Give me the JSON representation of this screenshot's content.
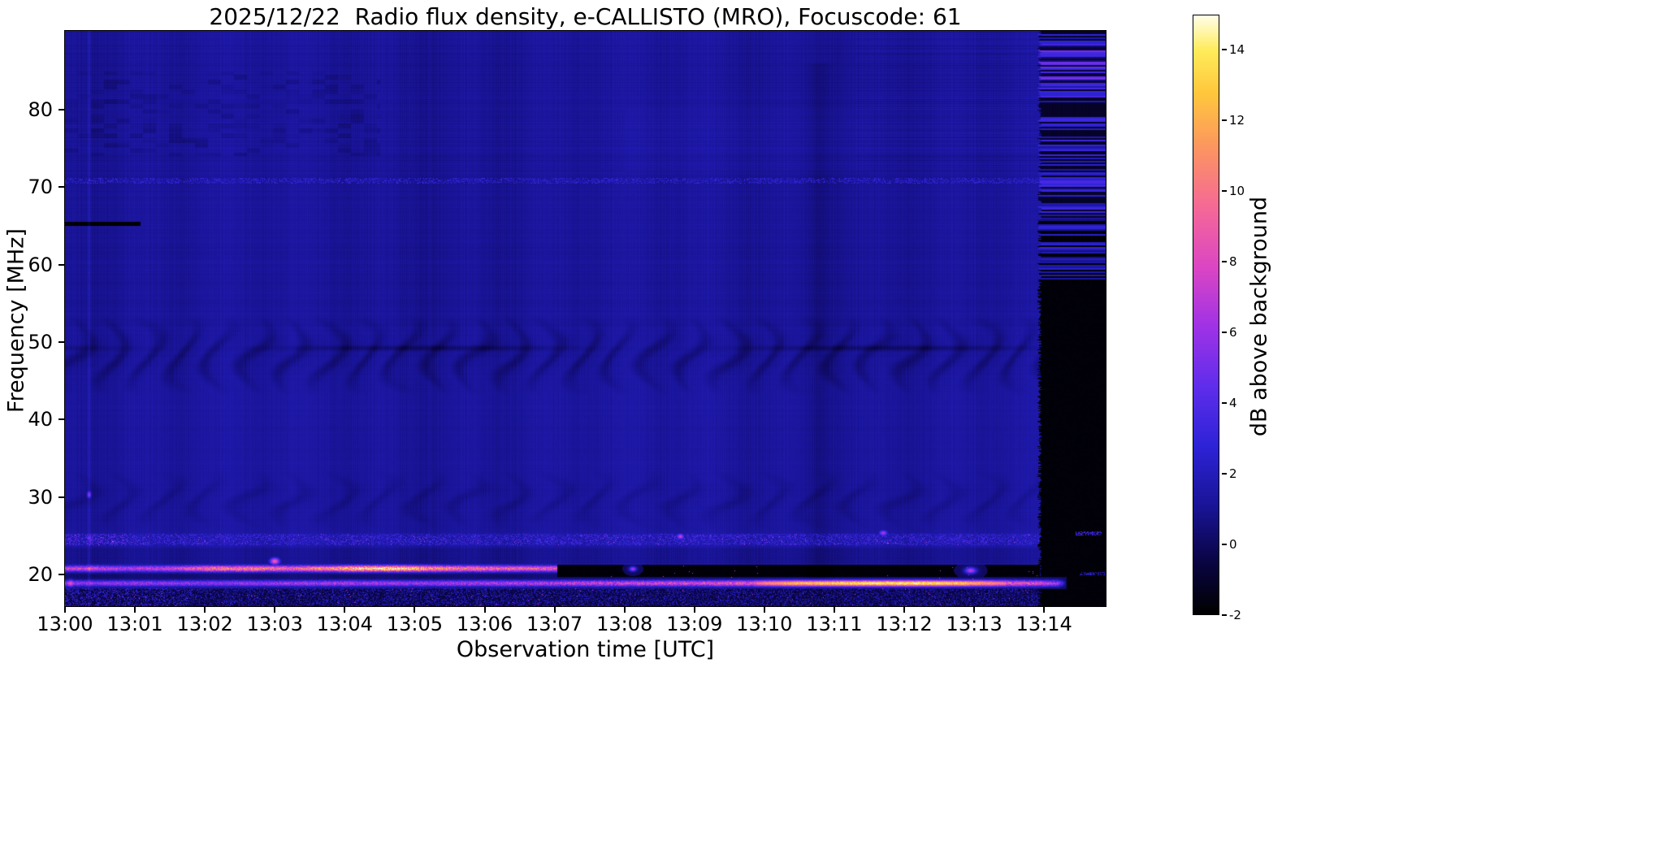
{
  "title": "2025/12/22  Radio flux density, e-CALLISTO (MRO), Focuscode: 61",
  "chart_data": {
    "type": "heatmap",
    "title": "2025/12/22  Radio flux density, e-CALLISTO (MRO), Focuscode: 61",
    "xlabel": "Observation time [UTC]",
    "ylabel": "Frequency [MHz]",
    "colorbar_label": "dB above background",
    "x_ticks": [
      "13:00",
      "13:01",
      "13:02",
      "13:03",
      "13:04",
      "13:05",
      "13:06",
      "13:07",
      "13:08",
      "13:09",
      "13:10",
      "13:11",
      "13:12",
      "13:13",
      "13:14"
    ],
    "x_range_minutes": [
      0,
      14.88
    ],
    "y_ticks": [
      80,
      70,
      60,
      50,
      40,
      30,
      20
    ],
    "y_range_mhz": [
      15.9,
      90.2
    ],
    "colorbar_ticks": [
      14,
      12,
      10,
      8,
      6,
      4,
      2,
      0,
      -2
    ],
    "colorbar_range": [
      -2,
      15
    ],
    "grid": false,
    "render": {
      "vmin": -2,
      "vmax": 15,
      "background_db": 1.25,
      "colormap_stops": [
        [
          0.0,
          0,
          0,
          0
        ],
        [
          0.09,
          10,
          5,
          70
        ],
        [
          0.18,
          25,
          20,
          150
        ],
        [
          0.28,
          45,
          35,
          215
        ],
        [
          0.38,
          95,
          45,
          235
        ],
        [
          0.48,
          160,
          50,
          230
        ],
        [
          0.58,
          220,
          70,
          195
        ],
        [
          0.68,
          245,
          105,
          150
        ],
        [
          0.78,
          252,
          150,
          95
        ],
        [
          0.87,
          255,
          200,
          60
        ],
        [
          0.94,
          255,
          235,
          90
        ],
        [
          1.0,
          255,
          255,
          235
        ]
      ],
      "wavy_bands": [
        {
          "f_min": 43.0,
          "f_max": 53.5,
          "amp": 0.85,
          "period_min": 0.52,
          "curve": 2.6
        },
        {
          "f_min": 25.8,
          "f_max": 33.5,
          "amp": 0.5,
          "period_min": 0.62,
          "curve": 2.2
        }
      ],
      "dark_row": {
        "f": 49.25,
        "sigma": 0.35,
        "depth": 1.0
      },
      "dead_line": {
        "f": 65.3,
        "half_mhz": 0.25,
        "t_end": 1.08
      },
      "speckle_row": {
        "f": 70.85,
        "half_mhz": 0.33
      },
      "speckle_band": {
        "f_min": 23.6,
        "f_max": 25.4
      },
      "line_a": {
        "f_center": 20.75,
        "sigma": 0.42,
        "intensity": [
          [
            0,
            7.5
          ],
          [
            0.35,
            8
          ],
          [
            0.9,
            7
          ],
          [
            1.6,
            8
          ],
          [
            2.1,
            10.5
          ],
          [
            2.7,
            11
          ],
          [
            3.2,
            9.5
          ],
          [
            3.8,
            11.5
          ],
          [
            4.15,
            13.5
          ],
          [
            4.6,
            14.2
          ],
          [
            5.0,
            13
          ],
          [
            5.4,
            11
          ],
          [
            6.0,
            10
          ],
          [
            6.5,
            9.5
          ],
          [
            7.0,
            9
          ],
          [
            7.04,
            9
          ],
          [
            7.06,
            0
          ],
          [
            15,
            0
          ]
        ]
      },
      "line_b": {
        "f_center": 18.85,
        "sigma": 0.4,
        "intensity": [
          [
            0,
            6.5
          ],
          [
            0.5,
            6
          ],
          [
            1,
            6.5
          ],
          [
            2,
            6
          ],
          [
            3,
            6.5
          ],
          [
            4,
            7
          ],
          [
            5,
            6.5
          ],
          [
            6,
            7
          ],
          [
            7,
            7.5
          ],
          [
            8,
            8
          ],
          [
            9,
            8.5
          ],
          [
            9.8,
            9.5
          ],
          [
            10.3,
            12
          ],
          [
            10.8,
            13.5
          ],
          [
            11.5,
            14
          ],
          [
            12.2,
            14.2
          ],
          [
            12.8,
            13
          ],
          [
            13.2,
            11
          ],
          [
            13.6,
            9.5
          ],
          [
            13.93,
            8.5
          ],
          [
            14.2,
            7
          ],
          [
            14.32,
            0
          ],
          [
            15,
            0
          ]
        ]
      },
      "blackout_band": {
        "t_start": 7.03,
        "t_end": 13.93,
        "f_min": 19.35,
        "f_max": 21.3
      },
      "right_blackout": {
        "t_start": 13.93,
        "f_split": 57.5
      },
      "streak": {
        "t": 0.345,
        "sigma": 0.022,
        "amp": 1.1
      },
      "dark_column": {
        "t": 10.78,
        "sigma": 0.16,
        "depth": 0.32
      },
      "blobs": [
        {
          "t": 3.0,
          "f": 21.7,
          "amp": 9,
          "st": 0.07,
          "sf": 0.45
        },
        {
          "t": 0.08,
          "f": 18.85,
          "amp": 8.5,
          "st": 0.06,
          "sf": 0.45
        },
        {
          "t": 8.12,
          "f": 20.7,
          "amp": 6.5,
          "st": 0.05,
          "sf": 0.3
        },
        {
          "t": 8.8,
          "f": 24.9,
          "amp": 7.5,
          "st": 0.05,
          "sf": 0.35
        },
        {
          "t": 11.7,
          "f": 25.35,
          "amp": 6.5,
          "st": 0.06,
          "sf": 0.35
        },
        {
          "t": 12.95,
          "f": 20.5,
          "amp": 7,
          "st": 0.08,
          "sf": 0.4
        },
        {
          "t": 0.345,
          "f": 30.3,
          "amp": 6,
          "st": 0.03,
          "sf": 0.5
        },
        {
          "t": 0.345,
          "f": 24.7,
          "amp": 5,
          "st": 0.03,
          "sf": 0.4
        }
      ]
    }
  }
}
